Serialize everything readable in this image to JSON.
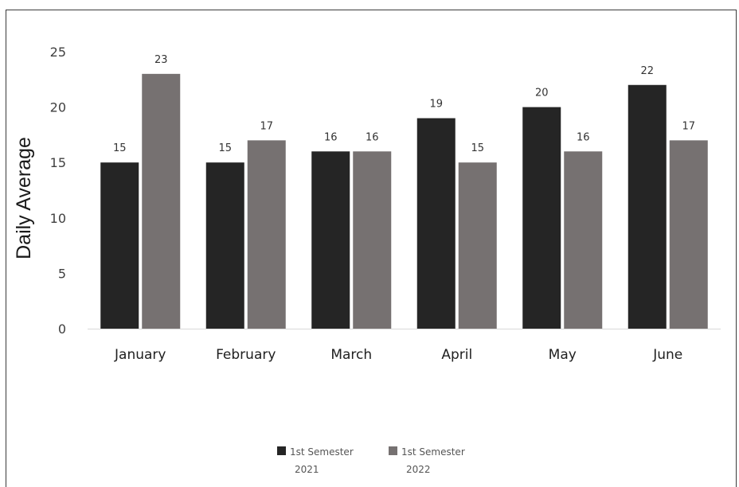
{
  "chart_data": {
    "type": "bar",
    "ylabel": "Daily Average",
    "xlabel": "",
    "ylim": [
      0,
      25
    ],
    "yticks": [
      0,
      5,
      10,
      15,
      20,
      25
    ],
    "grid": false,
    "legend_position": "bottom",
    "categories": [
      "January",
      "February",
      "March",
      "April",
      "May",
      "June"
    ],
    "series": [
      {
        "name": "1st Semester 2021",
        "legend_lines": [
          "1st Semester",
          "2021"
        ],
        "color": "#252525",
        "values": [
          15,
          15,
          16,
          19,
          20,
          22
        ]
      },
      {
        "name": "1st Semester 2022",
        "legend_lines": [
          "1st Semester",
          "2022"
        ],
        "color": "#767171",
        "values": [
          23,
          17,
          16,
          15,
          16,
          17
        ]
      }
    ]
  }
}
